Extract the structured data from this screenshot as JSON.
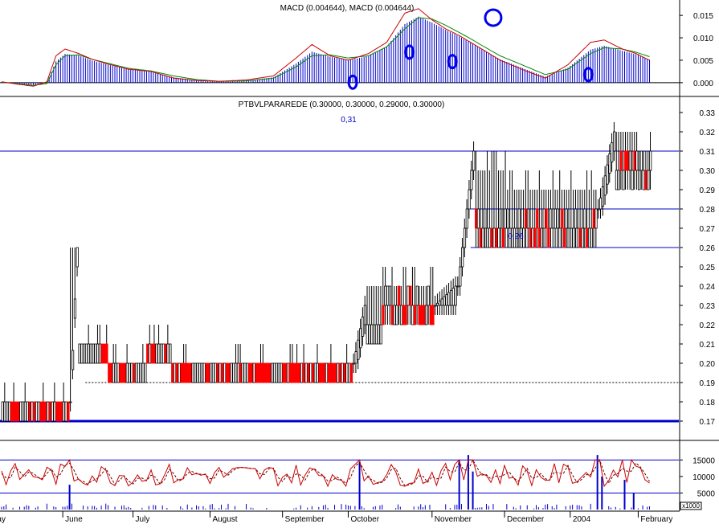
{
  "colors": {
    "background": "#ffffff",
    "frame": "#000000",
    "hline": "#0000cc",
    "up_bar": "#000000",
    "down_bar": "#ff0000",
    "macd_hist": "#0000cc",
    "macd_line": "#cc0000",
    "signal_line": "#008800",
    "volume": "#0000cc",
    "osc_line": "#cc0000",
    "marker": "#0000ee",
    "text_blue": "#0000cc"
  },
  "chart_data": [
    {
      "type": "macd",
      "title": "MACD (0.004644), MACD (0.004644)",
      "ylim": [
        -0.002,
        0.017
      ],
      "y_ticks": [
        "0.015",
        "0.010",
        "0.005",
        "0.000"
      ],
      "y_tick_values": [
        0.015,
        0.01,
        0.005,
        0.0
      ],
      "x": [
        0,
        8,
        14,
        20,
        24,
        28,
        34,
        40,
        48,
        56,
        66,
        76,
        86,
        96,
        108,
        120,
        130,
        137,
        145,
        153,
        162,
        170,
        178,
        184,
        190,
        196,
        202,
        207,
        212,
        220,
        232,
        240,
        250,
        260,
        266,
        274,
        280,
        286
      ],
      "macd": [
        0.0002,
        -0.0004,
        -0.0008,
        0.0002,
        0.006,
        0.0075,
        0.0065,
        0.0052,
        0.004,
        0.003,
        0.0025,
        0.001,
        0.0005,
        0.0003,
        0.0006,
        0.0015,
        0.0055,
        0.0085,
        0.006,
        0.005,
        0.0065,
        0.009,
        0.0155,
        0.0165,
        0.014,
        0.012,
        0.0105,
        0.009,
        0.0075,
        0.005,
        0.0025,
        0.001,
        0.004,
        0.009,
        0.0095,
        0.0075,
        0.0065,
        0.005
      ],
      "signal": [
        0.0001,
        -0.0003,
        -0.0006,
        -0.0002,
        0.004,
        0.006,
        0.0062,
        0.0052,
        0.0042,
        0.0032,
        0.0026,
        0.0015,
        0.0007,
        0.0003,
        0.0004,
        0.001,
        0.0035,
        0.006,
        0.0062,
        0.0055,
        0.006,
        0.008,
        0.012,
        0.0145,
        0.0142,
        0.0128,
        0.0112,
        0.0098,
        0.0083,
        0.006,
        0.0035,
        0.0018,
        0.003,
        0.0065,
        0.0078,
        0.0075,
        0.0068,
        0.0058
      ],
      "markers": [
        {
          "x": 155,
          "value": 0.0001
        },
        {
          "x": 180,
          "value": 0.0068
        },
        {
          "x": 199,
          "value": 0.0047
        },
        {
          "x": 217,
          "value": 0.0145
        },
        {
          "x": 259,
          "value": 0.0018
        }
      ]
    },
    {
      "type": "candlestick",
      "title": "PTBVLPARAREDE (0.30000, 0.30000, 0.29000, 0.30000)",
      "ylim": [
        0.165,
        0.335
      ],
      "y_ticks": [
        "0.33",
        "0.32",
        "0.31",
        "0.30",
        "0.29",
        "0.28",
        "0.27",
        "0.26",
        "0.25",
        "0.24",
        "0.23",
        "0.22",
        "0.21",
        "0.20",
        "0.19",
        "0.18",
        "0.17"
      ],
      "y_tick_values": [
        0.33,
        0.32,
        0.31,
        0.3,
        0.29,
        0.28,
        0.27,
        0.26,
        0.25,
        0.24,
        0.23,
        0.22,
        0.21,
        0.2,
        0.19,
        0.18,
        0.17
      ],
      "horizontal_lines": [
        {
          "value": 0.31,
          "label": "0,31",
          "x_start": 0,
          "style": "solid"
        },
        {
          "value": 0.28,
          "x_start": 207,
          "style": "solid"
        },
        {
          "value": 0.26,
          "label": "0,26",
          "x_start": 207,
          "style": "solid"
        },
        {
          "value": 0.19,
          "x_start": 37,
          "style": "dotted"
        },
        {
          "value": 0.17,
          "x_start": 0,
          "style": "thick"
        }
      ],
      "segments": [
        {
          "from": 0,
          "to": 29,
          "low": 0.17,
          "high": 0.18,
          "pattern": "mix"
        },
        {
          "from": 30,
          "to": 33,
          "low": 0.18,
          "high": 0.26,
          "pattern": "spike"
        },
        {
          "from": 34,
          "to": 46,
          "low": 0.2,
          "high": 0.21,
          "pattern": "mix"
        },
        {
          "from": 47,
          "to": 63,
          "low": 0.19,
          "high": 0.2,
          "pattern": "mix"
        },
        {
          "from": 64,
          "to": 74,
          "low": 0.2,
          "high": 0.21,
          "pattern": "mix"
        },
        {
          "from": 75,
          "to": 154,
          "low": 0.19,
          "high": 0.2,
          "pattern": "mix"
        },
        {
          "from": 155,
          "to": 160,
          "low": 0.2,
          "high": 0.23,
          "pattern": "up"
        },
        {
          "from": 161,
          "to": 167,
          "low": 0.21,
          "high": 0.24,
          "pattern": "mix"
        },
        {
          "from": 168,
          "to": 190,
          "low": 0.22,
          "high": 0.24,
          "pattern": "mix"
        },
        {
          "from": 191,
          "to": 200,
          "low": 0.23,
          "high": 0.24,
          "pattern": "up"
        },
        {
          "from": 201,
          "to": 208,
          "low": 0.24,
          "high": 0.31,
          "pattern": "up"
        },
        {
          "from": 209,
          "to": 222,
          "low": 0.26,
          "high": 0.3,
          "pattern": "mix"
        },
        {
          "from": 223,
          "to": 262,
          "low": 0.26,
          "high": 0.29,
          "pattern": "mix"
        },
        {
          "from": 263,
          "to": 270,
          "low": 0.28,
          "high": 0.32,
          "pattern": "up"
        },
        {
          "from": 271,
          "to": 278,
          "low": 0.29,
          "high": 0.32,
          "pattern": "mix"
        },
        {
          "from": 279,
          "to": 286,
          "low": 0.29,
          "high": 0.31,
          "pattern": "mix"
        }
      ],
      "x_labels": [
        "May",
        "June",
        "July",
        "August",
        "September",
        "October",
        "November",
        "December",
        "2004",
        "February"
      ],
      "x_label_positions": [
        -6,
        27,
        58,
        92,
        124,
        153,
        190,
        222,
        251,
        281
      ]
    },
    {
      "type": "volume",
      "y_ticks": [
        "15000",
        "10000",
        "5000"
      ],
      "y_tick_values": [
        15000,
        10000,
        5000
      ],
      "ylim": [
        0,
        18000
      ],
      "unit_label": "x1000",
      "horizontal_lines": [
        15000,
        5000
      ],
      "spikes": [
        {
          "x": 30,
          "value": 7500
        },
        {
          "x": 158,
          "value": 14500
        },
        {
          "x": 202,
          "value": 15000
        },
        {
          "x": 206,
          "value": 16500
        },
        {
          "x": 208,
          "value": 11500
        },
        {
          "x": 263,
          "value": 16500
        },
        {
          "x": 265,
          "value": 10000
        },
        {
          "x": 275,
          "value": 9000
        },
        {
          "x": 279,
          "value": 5000
        }
      ]
    }
  ]
}
